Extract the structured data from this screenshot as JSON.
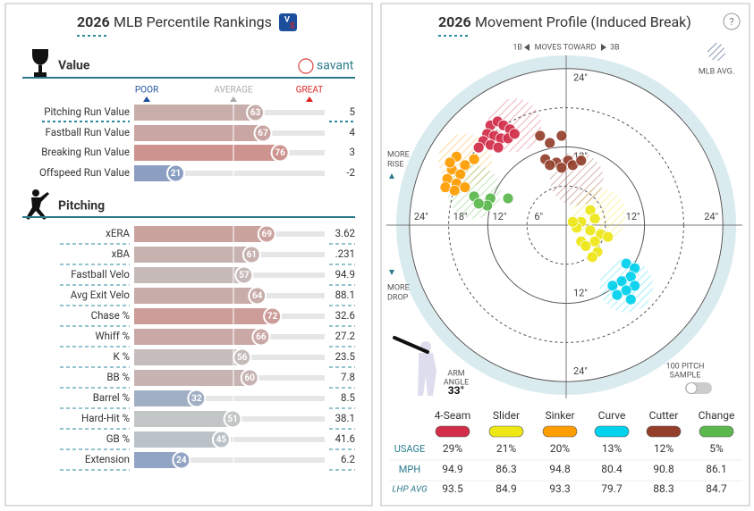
{
  "percentiles": {
    "title_year": "2026",
    "title": "MLB Percentile Rankings",
    "value_section": "Value",
    "brand": "savant",
    "scale_labels": [
      "POOR",
      "AVERAGE",
      "GREAT"
    ],
    "value_rows": [
      {
        "label": "Pitching Run Value",
        "percentile": 63,
        "stat": "5"
      },
      {
        "label": "Fastball Run Value",
        "percentile": 67,
        "stat": "4"
      },
      {
        "label": "Breaking Run Value",
        "percentile": 76,
        "stat": "3"
      },
      {
        "label": "Offspeed Run Value",
        "percentile": 21,
        "stat": "-2"
      }
    ],
    "pitching_section": "Pitching",
    "pitching_rows": [
      {
        "label": "xERA",
        "percentile": 69,
        "stat": "3.62"
      },
      {
        "label": "xBA",
        "percentile": 61,
        "stat": ".231"
      },
      {
        "label": "Fastball Velo",
        "percentile": 57,
        "stat": "94.9"
      },
      {
        "label": "Avg Exit Velo",
        "percentile": 64,
        "stat": "88.1"
      },
      {
        "label": "Chase %",
        "percentile": 72,
        "stat": "32.6"
      },
      {
        "label": "Whiff %",
        "percentile": 66,
        "stat": "27.2"
      },
      {
        "label": "K %",
        "percentile": 56,
        "stat": "23.5"
      },
      {
        "label": "BB %",
        "percentile": 60,
        "stat": "7.8"
      },
      {
        "label": "Barrel %",
        "percentile": 32,
        "stat": "8.5"
      },
      {
        "label": "Hard-Hit %",
        "percentile": 51,
        "stat": "38.1"
      },
      {
        "label": "GB %",
        "percentile": 45,
        "stat": "41.6"
      },
      {
        "label": "Extension",
        "percentile": 24,
        "stat": "6.2"
      }
    ]
  },
  "movement": {
    "title_year": "2026",
    "title": "Movement Profile (Induced Break)",
    "help": "?",
    "direction": [
      "1B",
      "MOVES TOWARD",
      "3B"
    ],
    "mlb_avg": "MLB AVG.",
    "more_rise": [
      "MORE",
      "RISE"
    ],
    "more_drop": [
      "MORE",
      "DROP"
    ],
    "arm_angle_label": [
      "ARM",
      "ANGLE"
    ],
    "arm_angle": "33°",
    "sample_toggle": [
      "100 PITCH",
      "SAMPLE"
    ],
    "xticks": [
      {
        "value": -24,
        "label": "24\""
      },
      {
        "value": -18,
        "label": "18\""
      },
      {
        "value": -12,
        "label": "12\""
      },
      {
        "value": -6,
        "label": "6\""
      },
      {
        "value": 12,
        "label": "12\""
      },
      {
        "value": 24,
        "label": "24\""
      }
    ],
    "yticks": [
      {
        "value": 24,
        "label": "24\""
      },
      {
        "value": 12,
        "label": "12\""
      },
      {
        "value": -12,
        "label": "12\""
      },
      {
        "value": -24,
        "label": "24\""
      }
    ],
    "row_labels": [
      "USAGE",
      "MPH",
      "LHP AVG"
    ],
    "pitches": [
      {
        "name": "4-Seam",
        "color": "#d22d49",
        "usage": "29%",
        "mph": "94.9",
        "lhp_avg": "93.5",
        "avg_x": -7.9,
        "avg_y": 15.3,
        "x": [
          -11.6,
          -10.5,
          -9.6,
          -8.6,
          -12.1,
          -11.0,
          -10.0,
          -8.9,
          -12.7,
          -11.6,
          -13.4,
          -10.4,
          -7.9
        ],
        "y": [
          15.3,
          15.9,
          15.3,
          14.7,
          14.0,
          13.7,
          13.3,
          13.3,
          12.9,
          12.3,
          11.9,
          11.9,
          14.0
        ]
      },
      {
        "name": "Slider",
        "color": "#eee716",
        "usage": "21%",
        "mph": "86.3",
        "lhp_avg": "84.9",
        "avg_x": 5.1,
        "avg_y": 1.6,
        "x": [
          3.7,
          4.4,
          2.3,
          1.6,
          3.7,
          5.3,
          2.3,
          4.4,
          6.4,
          3.0,
          4.8,
          4.0,
          1.0
        ],
        "y": [
          2.3,
          1.0,
          0.5,
          -0.4,
          -0.8,
          -1.4,
          -2.5,
          -2.5,
          -1.8,
          -3.2,
          -4.1,
          -4.9,
          0.5
        ]
      },
      {
        "name": "Sinker",
        "color": "#fe9d00",
        "usage": "20%",
        "mph": "94.8",
        "lhp_avg": "93.3",
        "avg_x": -15.5,
        "avg_y": 9.9,
        "x": [
          -16.8,
          -15.5,
          -17.5,
          -16.2,
          -18.2,
          -16.8,
          -18.5,
          -17.1,
          -15.5,
          -14.1,
          -17.8
        ],
        "y": [
          10.5,
          9.2,
          8.5,
          7.8,
          7.1,
          6.4,
          5.8,
          5.3,
          5.8,
          10.1,
          9.6
        ]
      },
      {
        "name": "Curve",
        "color": "#00d1ed",
        "usage": "13%",
        "mph": "80.4",
        "lhp_avg": "79.7",
        "avg_x": 9.2,
        "avg_y": -9.3,
        "x": [
          9.2,
          10.5,
          9.9,
          8.5,
          10.5,
          7.1,
          9.2,
          7.8,
          9.9
        ],
        "y": [
          -5.9,
          -6.6,
          -7.9,
          -8.6,
          -9.3,
          -9.3,
          -10.0,
          -10.7,
          -11.4
        ]
      },
      {
        "name": "Cutter",
        "color": "#933f2c",
        "usage": "12%",
        "mph": "90.8",
        "lhp_avg": "88.3",
        "avg_x": 1.6,
        "avg_y": 7.1,
        "x": [
          -4.0,
          -2.5,
          -0.7,
          -3.2,
          -1.5,
          0.3,
          -0.7,
          1.0,
          2.3,
          -2.5
        ],
        "y": [
          13.7,
          12.6,
          13.7,
          10.1,
          9.6,
          9.9,
          8.8,
          9.2,
          9.9,
          9.2
        ]
      },
      {
        "name": "Change",
        "color": "#5ab84d",
        "usage": "5%",
        "mph": "86.1",
        "lhp_avg": "84.7",
        "avg_x": -14.1,
        "avg_y": 5.1,
        "x": [
          -14.1,
          -11.6,
          -8.9,
          -12.1,
          -13.4
        ],
        "y": [
          4.4,
          4.1,
          4.1,
          3.0,
          3.3
        ]
      }
    ]
  }
}
